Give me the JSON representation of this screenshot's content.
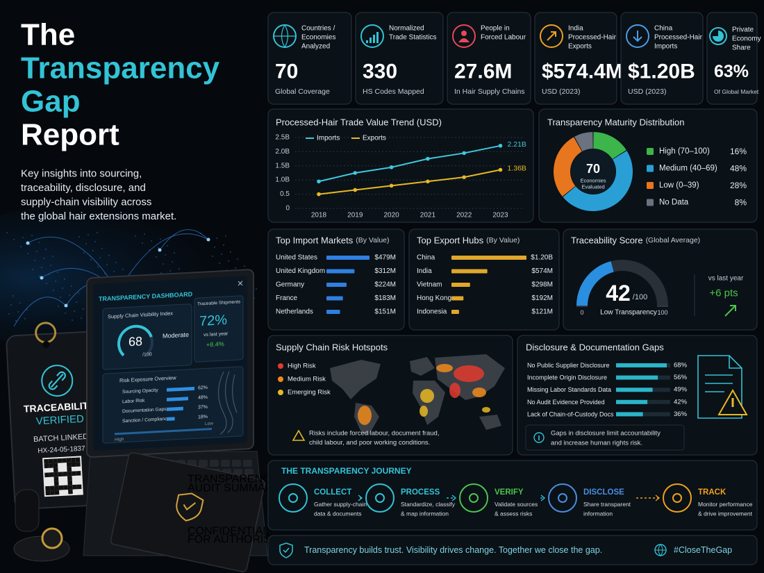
{
  "header": {
    "title": [
      "The",
      "Transparency",
      "Gap",
      "Report"
    ],
    "subtitle": [
      "Key insights into sourcing,",
      "traceability, disclosure, and",
      "supply-chain visibility across",
      "the global hair extensions market."
    ]
  },
  "kpis": [
    {
      "label": [
        "Countries /",
        "Economies",
        "Analyzed"
      ],
      "value": "70",
      "note": "Global Coverage"
    },
    {
      "label": [
        "Normalized",
        "Trade Statistics"
      ],
      "value": "330",
      "note": "HS Codes Mapped"
    },
    {
      "label": [
        "People in",
        "Forced Labour"
      ],
      "value": "27.6M",
      "note": "In Hair Supply Chains"
    },
    {
      "label": [
        "India",
        "Processed-Hair",
        "Exports"
      ],
      "value": "$574.4M",
      "note": "USD (2023)"
    },
    {
      "label": [
        "China",
        "Processed-Hair",
        "Imports"
      ],
      "value": "$1.20B",
      "note": "USD (2023)"
    },
    {
      "label": [
        "Private",
        "Economy",
        "Share"
      ],
      "value": "63%",
      "note": "Of Global Market"
    }
  ],
  "chart_data": [
    {
      "type": "line",
      "title": "Processed-Hair Trade Value Trend (USD)",
      "categories": [
        "2018",
        "2019",
        "2020",
        "2021",
        "2022",
        "2023"
      ],
      "series": [
        {
          "name": "Imports",
          "color": "#3fc8dc",
          "values": [
            0.95,
            1.25,
            1.45,
            1.75,
            1.95,
            2.21
          ],
          "value_labels": [
            null,
            null,
            null,
            null,
            null,
            "2.21B"
          ]
        },
        {
          "name": "Exports",
          "color": "#e8b923",
          "values": [
            0.5,
            0.65,
            0.8,
            0.95,
            1.1,
            1.36
          ],
          "value_labels": [
            null,
            null,
            null,
            null,
            null,
            "1.36B"
          ]
        }
      ],
      "ylim": [
        0,
        2.5
      ],
      "yticks": [
        0,
        0.5,
        {
          "value": 1,
          "label": "1.0B"
        },
        {
          "value": 1.5,
          "label": "1.5B"
        },
        {
          "value": 2,
          "label": "2.0B"
        },
        {
          "value": 2.5,
          "label": "2.5B"
        }
      ],
      "grid": true
    },
    {
      "type": "donut",
      "title": "Transparency Maturity Distribution",
      "center_value": "70",
      "center_label": [
        "Economies",
        "Evaluated"
      ],
      "categories": [
        "High (70–100)",
        "Medium (40–69)",
        "Low (0–39)",
        "No Data"
      ],
      "values": [
        16,
        48,
        28,
        8
      ],
      "value_labels": [
        "16%",
        "48%",
        "28%",
        "8%"
      ],
      "colors": [
        "#3cb54a",
        "#2a9fd6",
        "#e8761e",
        "#6b7280"
      ]
    },
    {
      "type": "hbar",
      "title": "Top Import Markets",
      "subtitle": "(By Value)",
      "categories": [
        "United States",
        "United Kingdom",
        "Germany",
        "France",
        "Netherlands"
      ],
      "values": [
        479,
        312,
        224,
        183,
        151
      ],
      "value_labels": [
        "$479M",
        "$312M",
        "$224M",
        "$183M",
        "$151M"
      ],
      "color": "#2f7fe0"
    },
    {
      "type": "hbar",
      "title": "Top Export Hubs",
      "subtitle": "(By Value)",
      "categories": [
        "China",
        "India",
        "Vietnam",
        "Hong Kong",
        "Indonesia"
      ],
      "values": [
        1200,
        574,
        298,
        192,
        121
      ],
      "value_labels": [
        "$1.20B",
        "$574M",
        "$298M",
        "$192M",
        "$121M"
      ],
      "color": "#e0a82a"
    },
    {
      "type": "gauge",
      "title": "Traceability Score",
      "subtitle": "(Global Average)",
      "value": 42,
      "unit": "/100",
      "status": "Low Transparency",
      "ylim": [
        0,
        100
      ],
      "yticks": [
        0,
        100
      ],
      "comparison_label": "vs last year",
      "change": "+6 pts",
      "color": "#2a8fe0"
    },
    {
      "type": "hbar",
      "title": "Disclosure & Documentation Gaps",
      "categories": [
        "No Public Supplier Disclosure",
        "Incomplete Origin Disclosure",
        "Missing Labor Standards Data",
        "No Audit Evidence Provided",
        "Lack of Chain-of-Custody Docs"
      ],
      "values": [
        68,
        56,
        49,
        42,
        36
      ],
      "value_labels": [
        "68%",
        "56%",
        "49%",
        "42%",
        "36%"
      ],
      "color": "#2bb5c9",
      "note": [
        "Gaps in disclosure limit accountability",
        "and increase human rights risk."
      ]
    }
  ],
  "risk_hotspots": {
    "title": "Supply Chain Risk Hotspots",
    "legend": [
      {
        "label": "High Risk",
        "color": "#e33b2e"
      },
      {
        "label": "Medium Risk",
        "color": "#f08a1c"
      },
      {
        "label": "Emerging Risk",
        "color": "#e8b923"
      }
    ],
    "note": [
      "Risks include forced labour, document fraud,",
      "child labour, and poor working conditions."
    ]
  },
  "journey": {
    "title": "THE TRANSPARENCY JOURNEY",
    "steps": [
      {
        "title": "COLLECT",
        "text": [
          "Gather supply-chain",
          "data & documents"
        ],
        "color": "#33c3d6"
      },
      {
        "title": "PROCESS",
        "text": [
          "Standardize, classify",
          "& map information"
        ],
        "color": "#33c3d6"
      },
      {
        "title": "VERIFY",
        "text": [
          "Validate sources",
          "& assess risks"
        ],
        "color": "#4cc44c"
      },
      {
        "title": "DISCLOSE",
        "text": [
          "Share transparent",
          "information"
        ],
        "color": "#4a8fe0"
      },
      {
        "title": "TRACK",
        "text": [
          "Monitor performance",
          "& drive improvement"
        ],
        "color": "#f0a020"
      }
    ]
  },
  "footer": {
    "message": "Transparency builds trust. Visibility drives change. Together we close the gap.",
    "hashtag": "#CloseTheGap"
  },
  "dashboard": {
    "title": "TRANSPARENCY DASHBOARD",
    "index_label": "Supply Chain Visibility Index",
    "index_value": "68",
    "index_unit": "/100",
    "index_status": "Moderate",
    "shipments_label": "Traceable Shipments",
    "shipments_value": "72%",
    "shipments_compare": "vs last year",
    "shipments_change": "+8.4%",
    "risk_title": "Risk Exposure Overview",
    "risk_items": [
      "Sourcing Opacity",
      "Labor Risk",
      "Documentation Gaps",
      "Sanction / Compliance"
    ],
    "risk_values": [
      62,
      48,
      37,
      18
    ],
    "risk_labels": [
      "62%",
      "48%",
      "37%",
      "18%"
    ],
    "scale": [
      "High",
      "Low"
    ]
  },
  "tag": {
    "title": "TRACEABILITY",
    "status": "VERIFIED",
    "batch": "BATCH LINKED",
    "code": "HX-24-05-1837"
  },
  "audit": {
    "title": [
      "TRANSPARENCY",
      "AUDIT SUMMARY"
    ],
    "notice": [
      "CONFIDENTIAL",
      "FOR AUTHORISED USE ONLY"
    ]
  }
}
